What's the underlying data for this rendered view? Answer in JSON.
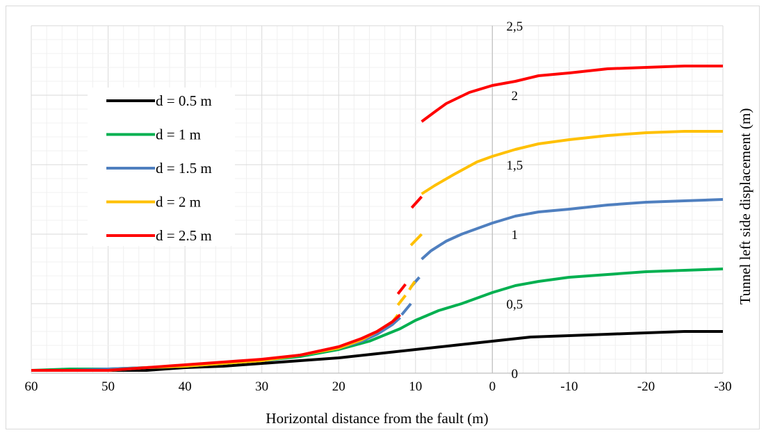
{
  "chart_data": {
    "type": "line",
    "title": "",
    "xlabel": "Horizontal distance from the fault (m)",
    "ylabel": "Tunnel left side displacement (m)",
    "xlim": [
      60,
      -30
    ],
    "ylim": [
      0,
      2.5
    ],
    "x_reversed": true,
    "y_axis_position": "at x = 0",
    "x_ticks": [
      60,
      50,
      40,
      30,
      20,
      10,
      0,
      -10,
      -20,
      -30
    ],
    "x_tick_labels": [
      "60",
      "50",
      "40",
      "30",
      "20",
      "10",
      "0",
      "-10",
      "-20",
      "-30"
    ],
    "y_ticks": [
      0,
      0.5,
      1,
      1.5,
      2,
      2.5
    ],
    "y_tick_labels": [
      "0",
      "0,5",
      "1",
      "1,5",
      "2",
      "2,5"
    ],
    "grid": "major and minor",
    "legend_position": "top-left",
    "series": [
      {
        "name": "d = 0.5 m",
        "color": "#000000",
        "segments": [
          [
            [
              60,
              0.02
            ],
            [
              55,
              0.02
            ],
            [
              50,
              0.02
            ],
            [
              45,
              0.02
            ],
            [
              40,
              0.04
            ],
            [
              35,
              0.05
            ],
            [
              30,
              0.07
            ],
            [
              25,
              0.09
            ],
            [
              20,
              0.11
            ],
            [
              15,
              0.14
            ],
            [
              10,
              0.17
            ],
            [
              5,
              0.2
            ],
            [
              0,
              0.23
            ],
            [
              -5,
              0.26
            ],
            [
              -10,
              0.27
            ],
            [
              -15,
              0.28
            ],
            [
              -20,
              0.29
            ],
            [
              -25,
              0.3
            ],
            [
              -30,
              0.3
            ]
          ]
        ]
      },
      {
        "name": "d = 1 m",
        "color": "#00B050",
        "segments": [
          [
            [
              60,
              0.02
            ],
            [
              55,
              0.03
            ],
            [
              50,
              0.03
            ],
            [
              45,
              0.04
            ],
            [
              40,
              0.05
            ],
            [
              35,
              0.07
            ],
            [
              30,
              0.09
            ],
            [
              25,
              0.12
            ],
            [
              20,
              0.17
            ],
            [
              16,
              0.23
            ],
            [
              12,
              0.32
            ],
            [
              10,
              0.38
            ],
            [
              7,
              0.45
            ],
            [
              4,
              0.5
            ],
            [
              0,
              0.58
            ],
            [
              -3,
              0.63
            ],
            [
              -6,
              0.66
            ],
            [
              -10,
              0.69
            ],
            [
              -15,
              0.71
            ],
            [
              -20,
              0.73
            ],
            [
              -25,
              0.74
            ],
            [
              -30,
              0.75
            ]
          ]
        ]
      },
      {
        "name": "d = 1.5 m",
        "color": "#4F7FBF",
        "segments": [
          [
            [
              60,
              0.02
            ],
            [
              55,
              0.02
            ],
            [
              50,
              0.03
            ],
            [
              45,
              0.04
            ],
            [
              40,
              0.05
            ],
            [
              35,
              0.07
            ],
            [
              30,
              0.09
            ],
            [
              25,
              0.13
            ],
            [
              20,
              0.18
            ],
            [
              17,
              0.23
            ],
            [
              15,
              0.28
            ],
            [
              13,
              0.35
            ],
            [
              12,
              0.4
            ]
          ],
          [
            [
              11.8,
              0.42
            ],
            [
              10.6,
              0.5
            ]
          ],
          [
            [
              10.6,
              0.62
            ],
            [
              9.5,
              0.69
            ]
          ],
          [
            [
              9.2,
              0.82
            ],
            [
              8,
              0.88
            ],
            [
              6,
              0.95
            ],
            [
              4,
              1.0
            ],
            [
              2,
              1.04
            ],
            [
              0,
              1.08
            ],
            [
              -3,
              1.13
            ],
            [
              -6,
              1.16
            ],
            [
              -10,
              1.18
            ],
            [
              -15,
              1.21
            ],
            [
              -20,
              1.23
            ],
            [
              -25,
              1.24
            ],
            [
              -30,
              1.25
            ]
          ]
        ]
      },
      {
        "name": "d = 2 m",
        "color": "#FFC000",
        "segments": [
          [
            [
              60,
              0.02
            ],
            [
              55,
              0.02
            ],
            [
              50,
              0.02
            ],
            [
              45,
              0.04
            ],
            [
              40,
              0.05
            ],
            [
              35,
              0.07
            ],
            [
              30,
              0.09
            ],
            [
              25,
              0.13
            ],
            [
              20,
              0.18
            ],
            [
              17,
              0.24
            ],
            [
              15,
              0.3
            ],
            [
              13,
              0.37
            ],
            [
              12.3,
              0.42
            ]
          ],
          [
            [
              12.3,
              0.49
            ],
            [
              11.3,
              0.56
            ]
          ],
          [
            [
              10.8,
              0.6
            ],
            [
              10.1,
              0.66
            ]
          ],
          [
            [
              10.6,
              0.92
            ],
            [
              9.2,
              1.0
            ]
          ],
          [
            [
              9.2,
              1.29
            ],
            [
              7.5,
              1.35
            ],
            [
              5,
              1.43
            ],
            [
              2,
              1.52
            ],
            [
              0,
              1.56
            ],
            [
              -3,
              1.61
            ],
            [
              -6,
              1.65
            ],
            [
              -10,
              1.68
            ],
            [
              -15,
              1.71
            ],
            [
              -20,
              1.73
            ],
            [
              -25,
              1.74
            ],
            [
              -30,
              1.74
            ]
          ]
        ]
      },
      {
        "name": "d = 2.5 m",
        "color": "#FF0000",
        "segments": [
          [
            [
              60,
              0.02
            ],
            [
              55,
              0.02
            ],
            [
              50,
              0.02
            ],
            [
              45,
              0.04
            ],
            [
              40,
              0.06
            ],
            [
              35,
              0.08
            ],
            [
              30,
              0.1
            ],
            [
              25,
              0.13
            ],
            [
              20,
              0.19
            ],
            [
              17,
              0.25
            ],
            [
              15,
              0.3
            ],
            [
              13,
              0.37
            ],
            [
              12,
              0.42
            ]
          ],
          [
            [
              12.3,
              0.57
            ],
            [
              11.3,
              0.64
            ]
          ],
          [
            [
              10.5,
              1.19
            ],
            [
              9.2,
              1.27
            ]
          ],
          [
            [
              9.2,
              1.81
            ],
            [
              7.5,
              1.88
            ],
            [
              6,
              1.94
            ],
            [
              3,
              2.02
            ],
            [
              0,
              2.07
            ],
            [
              -3,
              2.1
            ],
            [
              -6,
              2.14
            ],
            [
              -10,
              2.16
            ],
            [
              -15,
              2.19
            ],
            [
              -20,
              2.2
            ],
            [
              -25,
              2.21
            ],
            [
              -30,
              2.21
            ]
          ]
        ]
      }
    ]
  }
}
